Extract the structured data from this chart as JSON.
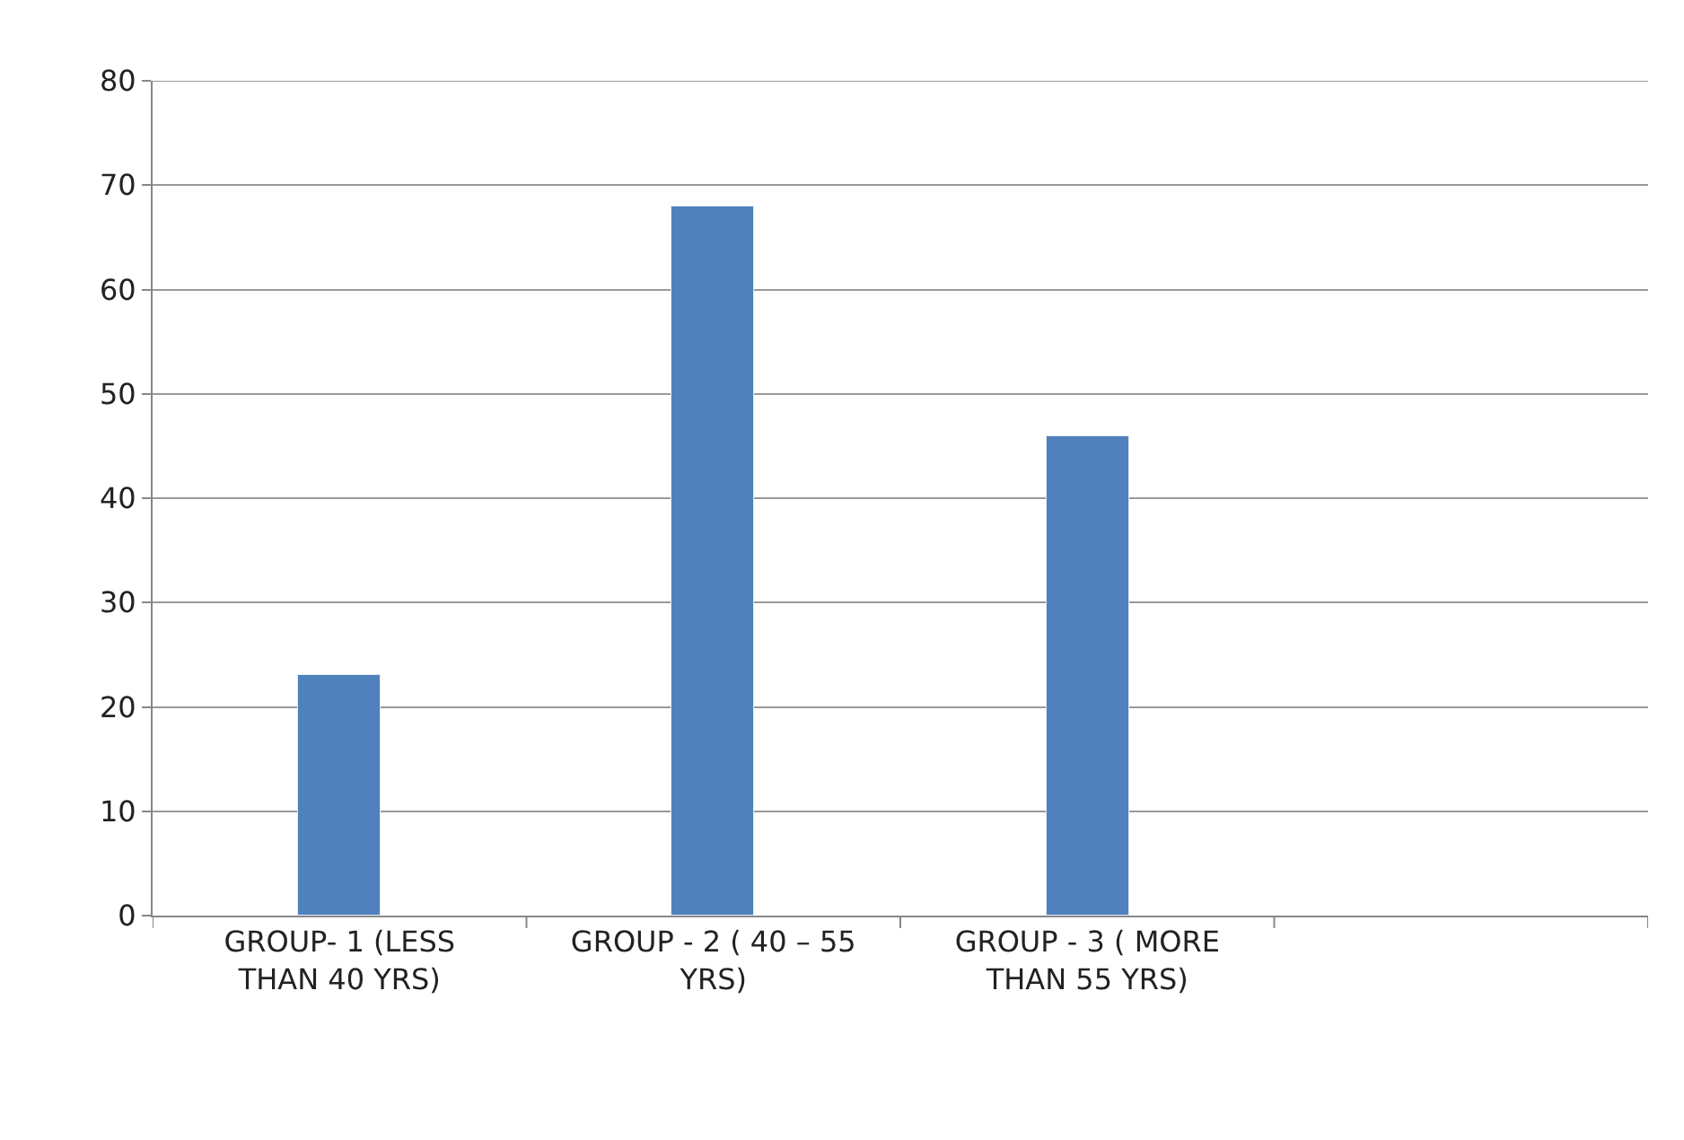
{
  "chart_data": {
    "type": "bar",
    "categories": [
      "GROUP- 1 (LESS\nTHAN 40 YRS)",
      "GROUP - 2 ( 40 – 55\nYRS)",
      "GROUP - 3 ( MORE\nTHAN 55 YRS)",
      null
    ],
    "values": [
      23,
      68,
      46,
      null
    ],
    "color": "#4f81bd",
    "ylim": [
      0,
      80
    ],
    "yticks": [
      0,
      10,
      20,
      30,
      40,
      50,
      60,
      70,
      80
    ],
    "grid": "y"
  }
}
